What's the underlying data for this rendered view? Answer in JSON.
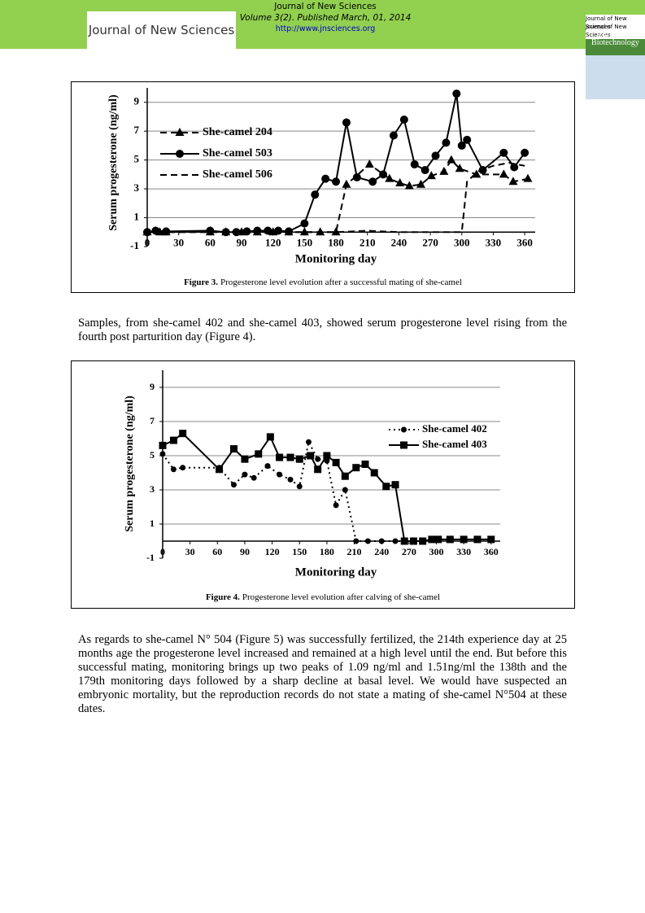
{
  "header": {
    "journal": "Journal of New Sciences",
    "volume": "Volume 3(2). Published March, 01, 2014",
    "url": "http://www.jnsciences.org",
    "logo": "Journal of New Sciences",
    "side_logo": [
      "Journal of New Sciences",
      "Journal of New Sciences",
      "Agriculture",
      "Biotechnology"
    ]
  },
  "chart_data": [
    {
      "type": "line",
      "caption_label": "Figure 3.",
      "caption": "Progesterone level evolution after a successful mating of she-camel",
      "x_label": "Monitoring day",
      "y_label": "Serum progesterone (ng/ml)",
      "xlim": [
        0,
        370
      ],
      "ylim": [
        -1,
        10
      ],
      "xticks": [
        0,
        30,
        60,
        90,
        120,
        150,
        180,
        210,
        240,
        270,
        300,
        330,
        360
      ],
      "yticks": [
        -1,
        1,
        3,
        5,
        7,
        9
      ],
      "grid": true,
      "color": "#000000",
      "series": [
        {
          "name": "She-camel 204",
          "marker": "triangle",
          "line_style": "dashed",
          "x": [
            0,
            12,
            18,
            60,
            75,
            90,
            105,
            120,
            135,
            150,
            165,
            180,
            190,
            212,
            231,
            241,
            250,
            261,
            271,
            283,
            290,
            298,
            314,
            340,
            349,
            363
          ],
          "values": [
            0,
            0,
            0,
            0,
            0,
            0,
            0,
            0,
            0,
            0,
            0,
            0,
            3.3,
            4.7,
            3.7,
            3.4,
            3.2,
            3.3,
            3.9,
            4.2,
            5,
            4.4,
            4,
            4,
            3.5,
            3.7
          ]
        },
        {
          "name": "She-camel 503",
          "marker": "circle",
          "line_style": "solid",
          "x": [
            0,
            8,
            18,
            60,
            75,
            85,
            95,
            105,
            115,
            125,
            135,
            150,
            160,
            170,
            180,
            190,
            200,
            215,
            225,
            235,
            245,
            255,
            265,
            275,
            285,
            295,
            300,
            305,
            320,
            340,
            350,
            360
          ],
          "values": [
            0,
            0.1,
            0.05,
            0.1,
            0,
            0,
            0.05,
            0.1,
            0.1,
            0.1,
            0.05,
            0.6,
            2.6,
            3.7,
            3.5,
            7.6,
            3.8,
            3.5,
            4,
            6.7,
            7.8,
            4.7,
            4.3,
            5.3,
            6.2,
            9.6,
            6,
            6.4,
            4.3,
            5.5,
            4.5,
            5.5
          ]
        },
        {
          "name": "She-camel 506",
          "marker": "none",
          "line_style": "dashed",
          "x": [
            0,
            60,
            120,
            180,
            210,
            240,
            270,
            300,
            305,
            315,
            330,
            345,
            360
          ],
          "values": [
            0,
            0,
            0,
            0,
            0.1,
            0,
            0,
            0,
            3.5,
            4.2,
            4.6,
            4.8,
            4.6
          ]
        }
      ]
    },
    {
      "type": "line",
      "caption_label": "Figure 4.",
      "caption": "Progesterone level evolution after calving of she-camel",
      "x_label": "Monitoring day",
      "y_label": "Serum progesterone (ng/ml)",
      "xlim": [
        0,
        370
      ],
      "ylim": [
        -1,
        10
      ],
      "xticks": [
        0,
        30,
        60,
        90,
        120,
        150,
        180,
        210,
        240,
        270,
        300,
        330,
        360
      ],
      "yticks": [
        -1,
        1,
        3,
        5,
        7,
        9
      ],
      "grid": true,
      "color": "#000000",
      "series": [
        {
          "name": "She-camel 402",
          "marker": "circle",
          "line_style": "dotted",
          "x": [
            0,
            12,
            22,
            62,
            78,
            90,
            100,
            115,
            128,
            140,
            150,
            160,
            170,
            180,
            190,
            200,
            212,
            225,
            240,
            255,
            265
          ],
          "values": [
            5.1,
            4.2,
            4.3,
            4.3,
            3.3,
            3.9,
            3.7,
            4.4,
            3.9,
            3.6,
            3.2,
            5.8,
            4.8,
            4.7,
            2.1,
            3,
            0,
            0,
            0,
            0,
            0
          ]
        },
        {
          "name": "She-camel 403",
          "marker": "square",
          "line_style": "solid",
          "x": [
            0,
            12,
            22,
            62,
            78,
            90,
            105,
            118,
            128,
            140,
            150,
            162,
            170,
            180,
            190,
            200,
            212,
            222,
            232,
            245,
            255,
            265,
            275,
            285,
            295,
            302,
            315,
            330,
            345,
            360
          ],
          "values": [
            5.6,
            5.9,
            6.3,
            4.2,
            5.4,
            4.8,
            5.1,
            6.1,
            4.9,
            4.9,
            4.8,
            5,
            4.2,
            5,
            4.6,
            3.8,
            4.3,
            4.5,
            4,
            3.2,
            3.3,
            0,
            0,
            0,
            0.1,
            0.1,
            0.1,
            0.1,
            0.1,
            0.1
          ]
        }
      ]
    }
  ],
  "paragraphs": [
    "Samples, from she-camel 402 and she-camel 403, showed serum progesterone level rising from the fourth post parturition day (Figure 4).",
    "As regards to she-camel N° 504 (Figure 5) was successfully fertilized, the 214th experience day at 25 months age the progesterone level increased and remained at a high level until the end. But before this successful mating, monitoring brings up two peaks of 1.09 ng/ml and 1.51ng/ml the 138th and the 179th monitoring days followed by a sharp decline at basal level. We would have suspected an embryonic mortality, but the reproduction records do not state a mating of she-camel N°504 at these dates."
  ]
}
